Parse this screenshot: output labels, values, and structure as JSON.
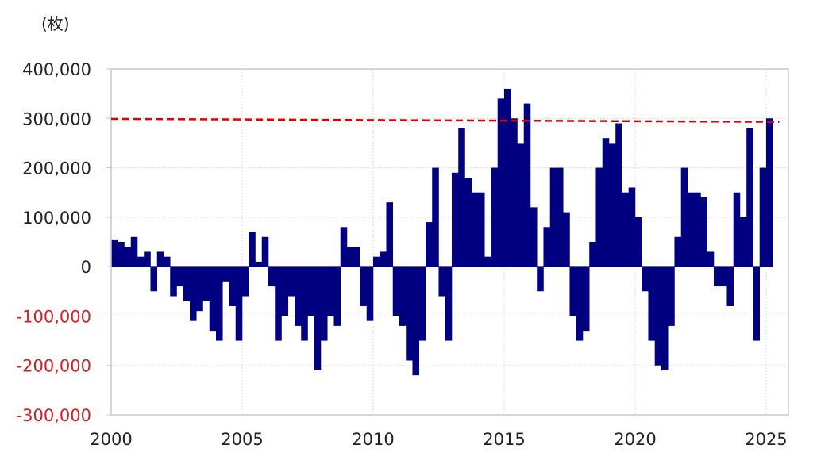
{
  "chart_data": {
    "type": "bar",
    "title": "",
    "ylabel": "(枚)",
    "xlabel": "",
    "ylim": [
      -300000,
      400000
    ],
    "xlim": [
      2000,
      2025.85
    ],
    "grid": true,
    "x_step": 0.25,
    "x_start": 2000,
    "bar_color": "#000080",
    "negative_label_color": "#d42020",
    "yticks": [
      {
        "value": 400000,
        "label": "400,000"
      },
      {
        "value": 300000,
        "label": "300,000"
      },
      {
        "value": 200000,
        "label": "200,000"
      },
      {
        "value": 100000,
        "label": "100,000"
      },
      {
        "value": 0,
        "label": "0"
      },
      {
        "value": -100000,
        "label": "-100,000"
      },
      {
        "value": -200000,
        "label": "-200,000"
      },
      {
        "value": -300000,
        "label": "-300,000"
      }
    ],
    "xticks": [
      {
        "value": 2000,
        "label": "2000"
      },
      {
        "value": 2005,
        "label": "2005"
      },
      {
        "value": 2010,
        "label": "2010"
      },
      {
        "value": 2015,
        "label": "2015"
      },
      {
        "value": 2020,
        "label": "2020"
      },
      {
        "value": 2025,
        "label": "2025"
      }
    ],
    "values": [
      55000,
      50000,
      40000,
      60000,
      20000,
      30000,
      -50000,
      30000,
      20000,
      -60000,
      -40000,
      -70000,
      -110000,
      -90000,
      -70000,
      -130000,
      -150000,
      -30000,
      -80000,
      -150000,
      -60000,
      70000,
      10000,
      60000,
      -40000,
      -150000,
      -100000,
      -60000,
      -120000,
      -150000,
      -100000,
      -210000,
      -150000,
      -100000,
      -120000,
      80000,
      40000,
      40000,
      -80000,
      -110000,
      20000,
      30000,
      130000,
      -100000,
      -120000,
      -190000,
      -220000,
      -150000,
      90000,
      200000,
      -60000,
      -150000,
      190000,
      280000,
      180000,
      150000,
      150000,
      20000,
      200000,
      340000,
      360000,
      300000,
      250000,
      330000,
      120000,
      -50000,
      80000,
      200000,
      200000,
      110000,
      -100000,
      -150000,
      -130000,
      50000,
      200000,
      260000,
      250000,
      290000,
      150000,
      160000,
      100000,
      -50000,
      -150000,
      -200000,
      -210000,
      -120000,
      60000,
      200000,
      150000,
      150000,
      140000,
      30000,
      -40000,
      -40000,
      -80000,
      150000,
      100000,
      280000,
      -150000,
      200000,
      300000
    ],
    "reference_line": {
      "color": "#e00000",
      "style": "dashed",
      "x": [
        2000,
        2025.5
      ],
      "y": [
        299000,
        293000
      ]
    }
  }
}
